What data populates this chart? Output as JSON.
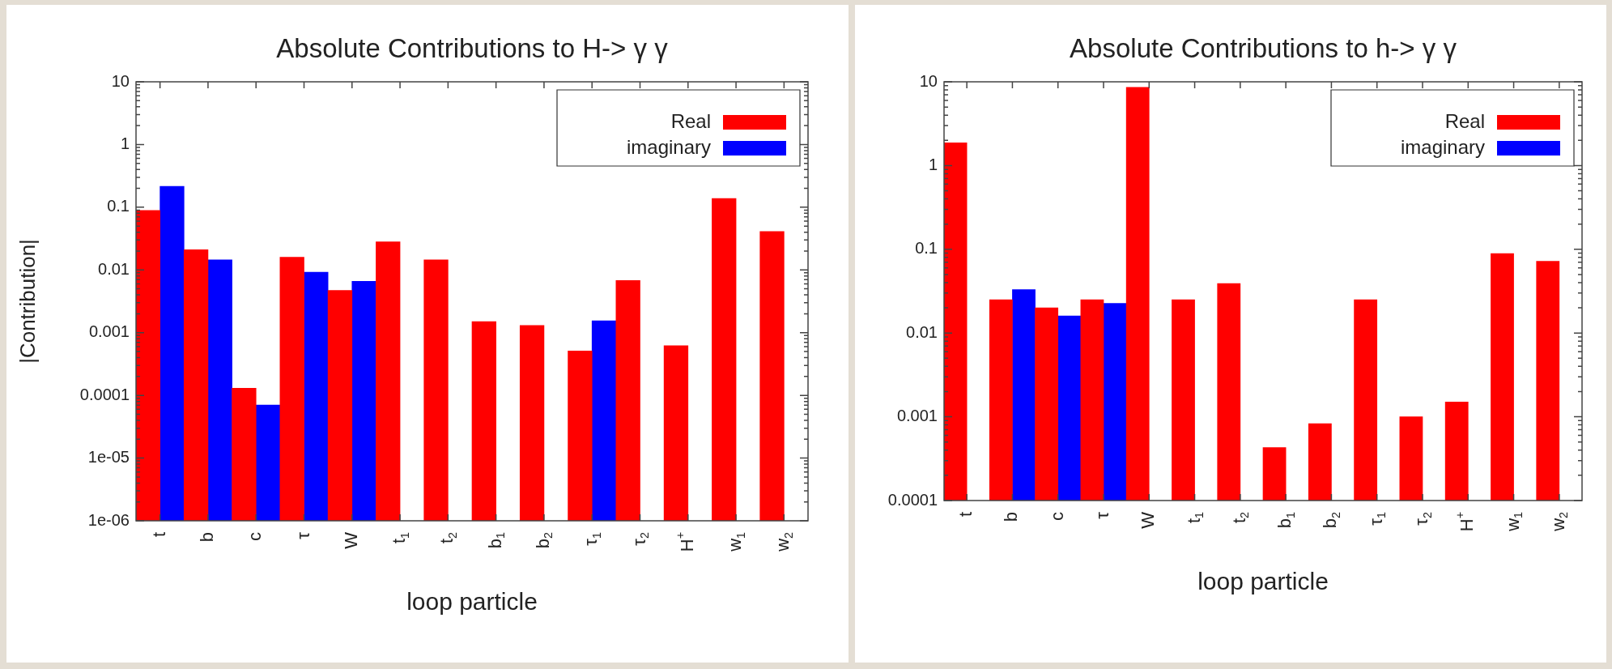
{
  "chart_data": [
    {
      "type": "bar",
      "title": "Absolute Contributions to H-> γ γ",
      "xlabel": "loop particle",
      "ylabel": "|Contribution|",
      "log": "y",
      "legend": "top right",
      "grid": false,
      "categories": [
        "t",
        "b",
        "c",
        "τ",
        "W",
        "t$_{1}$",
        "t$_{2}$",
        "b$_{1}$",
        "b$_{2}$",
        "τ$_{1}$",
        "τ$_{2}$",
        "H$^{+}$",
        "w$_{1}$",
        "w$_{2}$"
      ],
      "ylim": [
        1e-06,
        10
      ],
      "yticks": [
        {
          "value": 1e-06,
          "label": "1e-06"
        },
        {
          "value": 1e-05,
          "label": "1e-05"
        },
        0.0001,
        0.001,
        0.01,
        0.1,
        1,
        10
      ],
      "series": [
        {
          "name": "Real",
          "color": "#ff0000",
          "values": [
            0.089,
            0.021,
            0.00013,
            0.016,
            0.0047,
            0.028,
            0.0145,
            0.0015,
            0.0013,
            0.00051,
            0.0068,
            0.00062,
            0.138,
            0.041
          ]
        },
        {
          "name": "imaginary",
          "color": "#0000ff",
          "values": [
            0.215,
            0.0145,
            7e-05,
            0.0092,
            0.0066,
            null,
            null,
            null,
            null,
            0.00155,
            null,
            null,
            null,
            null
          ]
        }
      ]
    },
    {
      "type": "bar",
      "title": "Absolute Contributions to h-> γ γ",
      "xlabel": "loop particle",
      "log": "y",
      "legend": "top right",
      "grid": false,
      "categories": [
        "t",
        "b",
        "c",
        "τ",
        "W",
        "t$_{1}$",
        "t$_{2}$",
        "b$_{1}$",
        "b$_{2}$",
        "τ$_{1}$",
        "τ$_{2}$",
        "H$^{+}$",
        "w$_{1}$",
        "w$_{2}$"
      ],
      "ylim": [
        0.0001,
        10
      ],
      "yticks": [
        0.0001,
        0.001,
        0.01,
        0.1,
        1,
        10
      ],
      "series": [
        {
          "name": "Real",
          "color": "#ff0000",
          "values": [
            1.87,
            0.025,
            0.02,
            0.025,
            8.6,
            0.025,
            0.039,
            0.00043,
            0.00083,
            0.025,
            0.001,
            0.0015,
            0.089,
            0.072
          ]
        },
        {
          "name": "imaginary",
          "color": "#0000ff",
          "values": [
            null,
            0.033,
            0.016,
            0.0226,
            null,
            null,
            null,
            null,
            null,
            null,
            null,
            null,
            null,
            null
          ]
        }
      ]
    }
  ]
}
